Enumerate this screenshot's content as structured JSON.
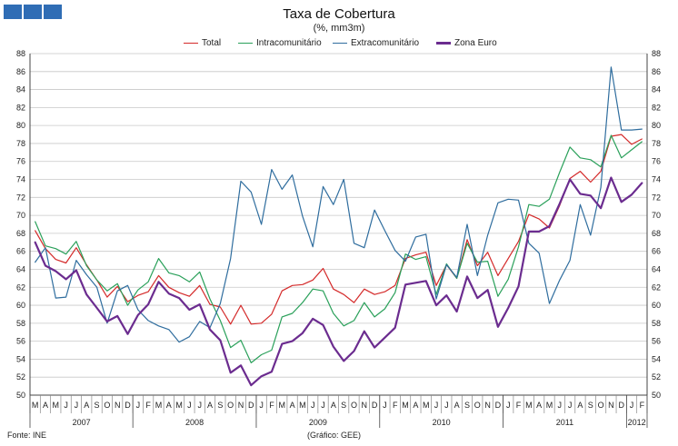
{
  "chart_data": {
    "type": "line",
    "title": "Taxa de Cobertura",
    "subtitle": "(%, mm3m)",
    "source": "Fonte: INE",
    "credit": "(Gráfico: GEE)",
    "ylim": [
      50,
      88
    ],
    "yticks": [
      50,
      52,
      54,
      56,
      58,
      60,
      62,
      64,
      66,
      68,
      70,
      72,
      74,
      76,
      78,
      80,
      82,
      84,
      86,
      88
    ],
    "grid": "horizontal",
    "legend_position": "top",
    "x": [
      "M",
      "A",
      "M",
      "J",
      "J",
      "A",
      "S",
      "O",
      "N",
      "D",
      "J",
      "F",
      "M",
      "A",
      "M",
      "J",
      "J",
      "A",
      "S",
      "O",
      "N",
      "D",
      "J",
      "F",
      "M",
      "A",
      "M",
      "J",
      "J",
      "A",
      "S",
      "O",
      "N",
      "D",
      "J",
      "F",
      "M",
      "A",
      "M",
      "J",
      "J",
      "A",
      "S",
      "O",
      "N",
      "D",
      "J",
      "F",
      "M",
      "A",
      "M",
      "J",
      "J",
      "A",
      "S",
      "O",
      "N",
      "D",
      "J",
      "F"
    ],
    "years": [
      {
        "label": "2007",
        "start": 0,
        "end": 9
      },
      {
        "label": "2008",
        "start": 10,
        "end": 21
      },
      {
        "label": "2009",
        "start": 22,
        "end": 33
      },
      {
        "label": "2010",
        "start": 34,
        "end": 45
      },
      {
        "label": "2011",
        "start": 46,
        "end": 57
      },
      {
        "label": "2012",
        "start": 58,
        "end": 59
      }
    ],
    "series": [
      {
        "name": "Total",
        "color": "#d42a2a",
        "width": 1.2,
        "values": [
          68.3,
          66.3,
          65.1,
          64.7,
          66.4,
          64.5,
          62.8,
          60.9,
          62.1,
          60.4,
          61.1,
          61.5,
          63.3,
          62.0,
          61.4,
          61.0,
          62.2,
          60.1,
          59.8,
          57.9,
          60.0,
          57.9,
          58.0,
          59.0,
          61.6,
          62.2,
          62.3,
          62.8,
          64.1,
          61.8,
          61.2,
          60.3,
          61.8,
          61.2,
          61.5,
          62.2,
          65.2,
          65.6,
          65.9,
          62.2,
          64.5,
          63.0,
          67.3,
          64.4,
          65.9,
          63.3,
          65.2,
          67.1,
          70.1,
          69.6,
          68.6,
          71.1,
          74.1,
          74.9,
          73.7,
          74.9,
          78.8,
          79.0,
          77.9,
          78.5
        ]
      },
      {
        "name": "Intracomunitário",
        "color": "#2aa05a",
        "width": 1.2,
        "values": [
          69.3,
          66.6,
          66.3,
          65.7,
          67.1,
          64.4,
          62.8,
          61.6,
          62.4,
          60.0,
          61.7,
          62.6,
          65.2,
          63.6,
          63.3,
          62.6,
          63.7,
          60.7,
          58.3,
          55.3,
          56.1,
          53.6,
          54.5,
          55.0,
          58.7,
          59.1,
          60.3,
          61.8,
          61.6,
          59.1,
          57.7,
          58.3,
          60.3,
          58.7,
          59.6,
          61.4,
          65.7,
          65.1,
          65.4,
          61.2,
          64.6,
          63.0,
          66.9,
          64.8,
          64.9,
          61.0,
          62.9,
          66.5,
          71.2,
          71.0,
          71.8,
          74.8,
          77.6,
          76.4,
          76.2,
          75.4,
          78.9,
          76.4,
          77.3,
          78.2
        ]
      },
      {
        "name": "Extracomunitário",
        "color": "#2f6d9e",
        "width": 1.2,
        "values": [
          64.8,
          66.4,
          60.8,
          60.9,
          65.0,
          63.4,
          62.0,
          58.0,
          61.6,
          62.2,
          59.5,
          58.3,
          57.7,
          57.3,
          55.9,
          56.5,
          58.2,
          57.5,
          60.2,
          65.2,
          73.8,
          72.6,
          69.0,
          75.1,
          72.9,
          74.5,
          69.9,
          66.5,
          73.2,
          71.2,
          74.0,
          66.9,
          66.4,
          70.6,
          68.3,
          66.1,
          64.9,
          67.6,
          67.9,
          60.7,
          64.5,
          63.1,
          69.0,
          63.3,
          67.8,
          71.4,
          71.8,
          71.7,
          66.9,
          65.8,
          60.2,
          62.8,
          65.0,
          71.2,
          67.8,
          73.1,
          86.5,
          79.5,
          79.5,
          79.6
        ]
      },
      {
        "name": "Zona Euro",
        "color": "#6b2c8f",
        "width": 2.2,
        "values": [
          67.0,
          64.4,
          63.8,
          62.9,
          63.9,
          61.2,
          59.7,
          58.2,
          58.8,
          56.8,
          58.9,
          60.1,
          62.6,
          61.3,
          60.8,
          59.5,
          60.1,
          57.3,
          56.1,
          52.5,
          53.3,
          51.1,
          52.1,
          52.6,
          55.7,
          56.0,
          56.9,
          58.5,
          57.8,
          55.4,
          53.8,
          54.9,
          57.1,
          55.3,
          56.4,
          57.5,
          62.3,
          62.5,
          62.7,
          60.0,
          61.1,
          59.3,
          63.2,
          60.8,
          61.7,
          57.6,
          59.7,
          62.1,
          68.2,
          68.2,
          68.8,
          71.3,
          74.0,
          72.4,
          72.2,
          70.8,
          74.2,
          71.5,
          72.3,
          73.6
        ]
      }
    ]
  }
}
